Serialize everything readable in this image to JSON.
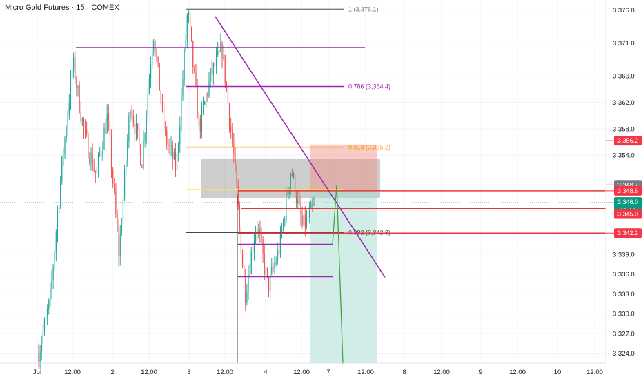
{
  "header": {
    "title": "Micro Gold Futures · 15 · COMEX"
  },
  "chart_data": {
    "type": "candlestick",
    "instrument": "Micro Gold Futures",
    "interval": "15",
    "exchange": "COMEX",
    "x_tick_labels": [
      "Jul",
      "12:00",
      "2",
      "12:00",
      "3",
      "12:00",
      "4",
      "12:00",
      "7",
      "12:00",
      "8",
      "12:00",
      "9",
      "12:00",
      "10",
      "12:00"
    ],
    "y_tick_labels": [
      "3,376.0",
      "3,371.0",
      "3,366.0",
      "3,362.0",
      "3,358.0",
      "3,354.0",
      "3,339.0",
      "3,336.0",
      "3,333.0",
      "3,330.0",
      "3,327.0",
      "3,324.0"
    ],
    "ylim": [
      3322.5,
      3377.5
    ],
    "price_path": [
      3324,
      3332,
      3352,
      3368,
      3357,
      3351,
      3360,
      3339,
      3362,
      3353,
      3373,
      3357,
      3352,
      3376,
      3358,
      3366,
      3370,
      3354,
      3333,
      3344,
      3334,
      3340,
      3352,
      3343,
      3346
    ],
    "fib_levels": [
      {
        "ratio": "1",
        "price": 3376.1,
        "label": "1 (3,376.1)",
        "color": "#787b86"
      },
      {
        "ratio": "0.786",
        "price": 3364.4,
        "label": "0.786 (3,364.4)",
        "color": "#9c27b0"
      },
      {
        "ratio": "0.618",
        "price": 3355.2,
        "label": "0.618 (3,355.2)",
        "color": "#ff9800"
      },
      {
        "ratio": "0.5",
        "price": 3348.8,
        "label": "",
        "color": "#ffeb3b"
      },
      {
        "ratio": "0.382",
        "price": 3342.3,
        "label": "0.382 (3,342.3)",
        "color": "#434651"
      }
    ],
    "horizontal_lines": [
      {
        "price": 3370.3,
        "color": "#9c27b0"
      },
      {
        "price": 3348.6,
        "color": "#e53935"
      },
      {
        "price": 3345.9,
        "color": "#e53935"
      },
      {
        "price": 3342.2,
        "color": "#e53935"
      },
      {
        "price": 3340.5,
        "color": "#9c27b0"
      },
      {
        "price": 3335.6,
        "color": "#9c27b0"
      }
    ],
    "trendline": {
      "from_price": 3375,
      "to_price": 3335.5,
      "color": "#9c27b0"
    },
    "zones": [
      {
        "kind": "demand-box",
        "top": 3353.4,
        "bottom": 3347.5,
        "color": "#9e9e9e"
      },
      {
        "kind": "risk",
        "top": 3355.6,
        "bottom": 3348.6,
        "color": "#f28b82"
      },
      {
        "kind": "reward",
        "top": 3348.6,
        "bottom": 3322.5,
        "color": "#a5dcd0"
      }
    ],
    "price_badges": [
      {
        "text": "3,356.2",
        "price": 3356.2,
        "color": "#f23645"
      },
      {
        "text": "3,348.7",
        "price": 3349.5,
        "color": "#787b86"
      },
      {
        "text": "3,348.6",
        "price": 3348.6,
        "color": "#f23645"
      },
      {
        "text": "3,346.0",
        "price": 3346.8,
        "color": "#089981",
        "sub": "09:26"
      },
      {
        "text": "3,345.0",
        "price": 3345.1,
        "color": "#f23645"
      },
      {
        "text": "3,342.2",
        "price": 3342.2,
        "color": "#f23645"
      }
    ],
    "colors": {
      "up": "#26a69a",
      "down": "#ef5350"
    }
  }
}
